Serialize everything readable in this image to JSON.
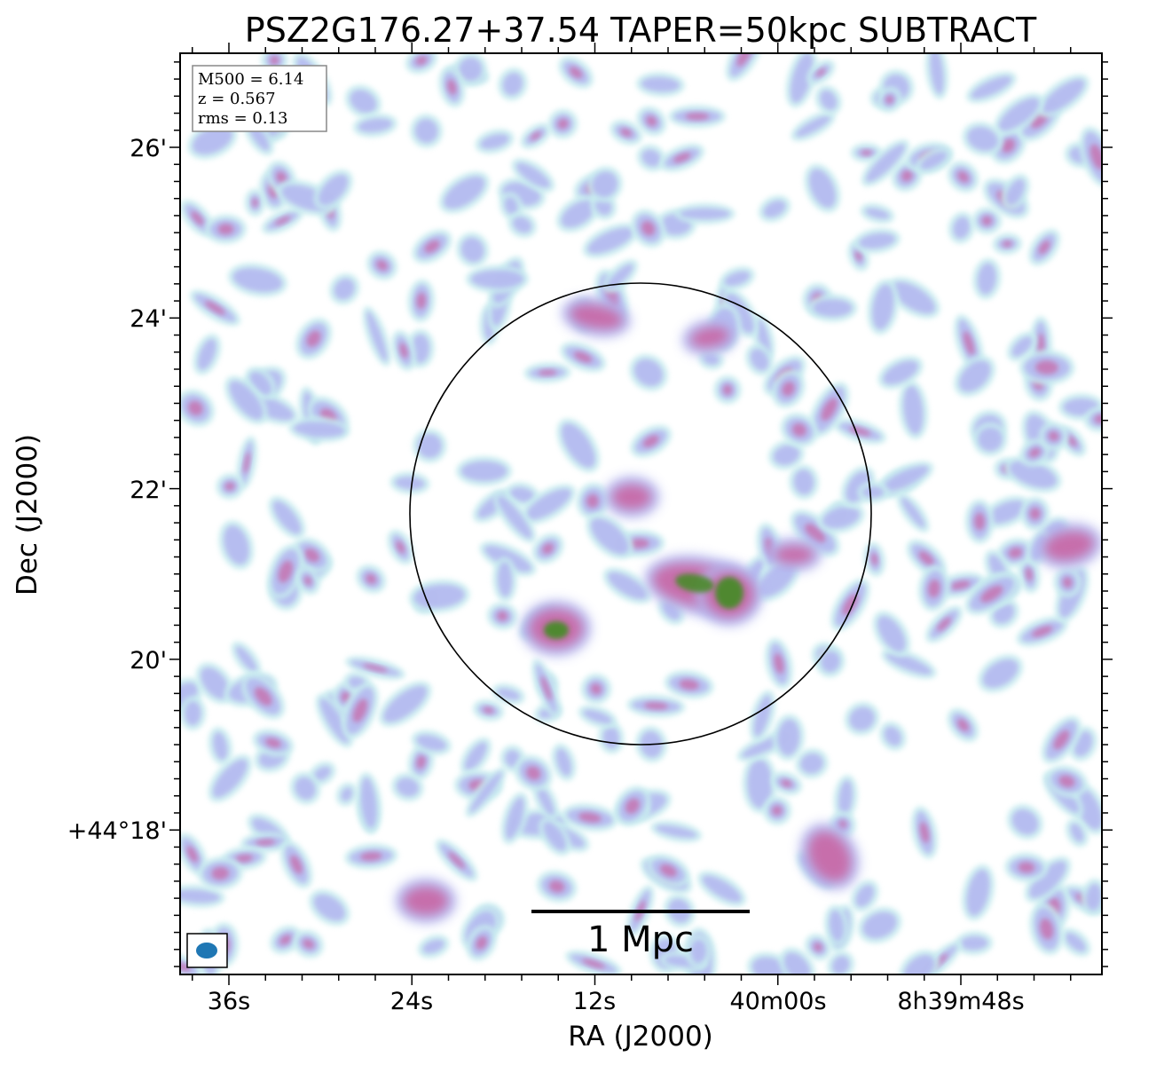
{
  "title": "PSZ2G176.27+37.54 TAPER=50kpc SUBTRACT",
  "axes": {
    "xlabel": "RA (J2000)",
    "ylabel": "Dec (J2000)",
    "x_ticks": [
      "36s",
      "24s",
      "12s",
      "40m00s",
      "8h39m48s"
    ],
    "y_ticks": [
      "26'",
      "24'",
      "22'",
      "20'",
      "+44°18'"
    ]
  },
  "info_box": {
    "line1": "M500 = 6.14",
    "line2": "z = 0.567",
    "line3": "rms = 0.13"
  },
  "scalebar": {
    "label": "1 Mpc"
  },
  "colors": {
    "low": "#c8ecef",
    "mid": "#b4b8f0",
    "high": "#c86aa8",
    "peak": "#4a8a2a",
    "beam": "#1f77b4"
  }
}
